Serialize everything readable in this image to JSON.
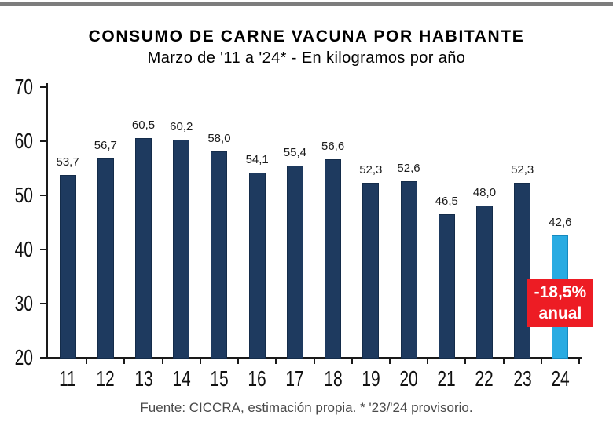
{
  "header": {
    "title": "CONSUMO DE CARNE VACUNA POR HABITANTE",
    "subtitle": "Marzo de '11 a '24* - En kilogramos por año"
  },
  "footer": {
    "source": "Fuente: CICCRA, estimación propia. * '23/'24 provisorio."
  },
  "colors": {
    "top_rule": "#7d7d7d",
    "bar": "#1e3a5f",
    "bar_border": "#142c4a",
    "highlight_bar": "#29abe2",
    "highlight_border": "#1589bf",
    "annotation_bg": "#ed1c24",
    "annotation_text": "#ffffff",
    "axis": "#1a1a1a"
  },
  "chart_data": {
    "type": "bar",
    "title": "CONSUMO DE CARNE VACUNA POR HABITANTE",
    "subtitle": "Marzo de '11 a '24* - En kilogramos por año",
    "categories": [
      "11",
      "12",
      "13",
      "14",
      "15",
      "16",
      "17",
      "18",
      "19",
      "20",
      "21",
      "22",
      "23",
      "24"
    ],
    "values": [
      53.7,
      56.7,
      60.5,
      60.2,
      58.0,
      54.1,
      55.4,
      56.6,
      52.3,
      52.6,
      46.5,
      48.0,
      52.3,
      42.6
    ],
    "value_labels": [
      "53,7",
      "56,7",
      "60,5",
      "60,2",
      "58,0",
      "54,1",
      "55,4",
      "56,6",
      "52,3",
      "52,6",
      "46,5",
      "48,0",
      "52,3",
      "42,6"
    ],
    "ylim": [
      20,
      70
    ],
    "yticks": [
      20,
      30,
      40,
      50,
      60,
      70
    ],
    "xlabel": "",
    "ylabel": "",
    "grid": false,
    "legend": "none",
    "highlight_index": 13,
    "annotation": {
      "line1": "-18,5%",
      "line2": "anual"
    },
    "source": "Fuente: CICCRA, estimación propia. * '23/'24 provisorio."
  }
}
